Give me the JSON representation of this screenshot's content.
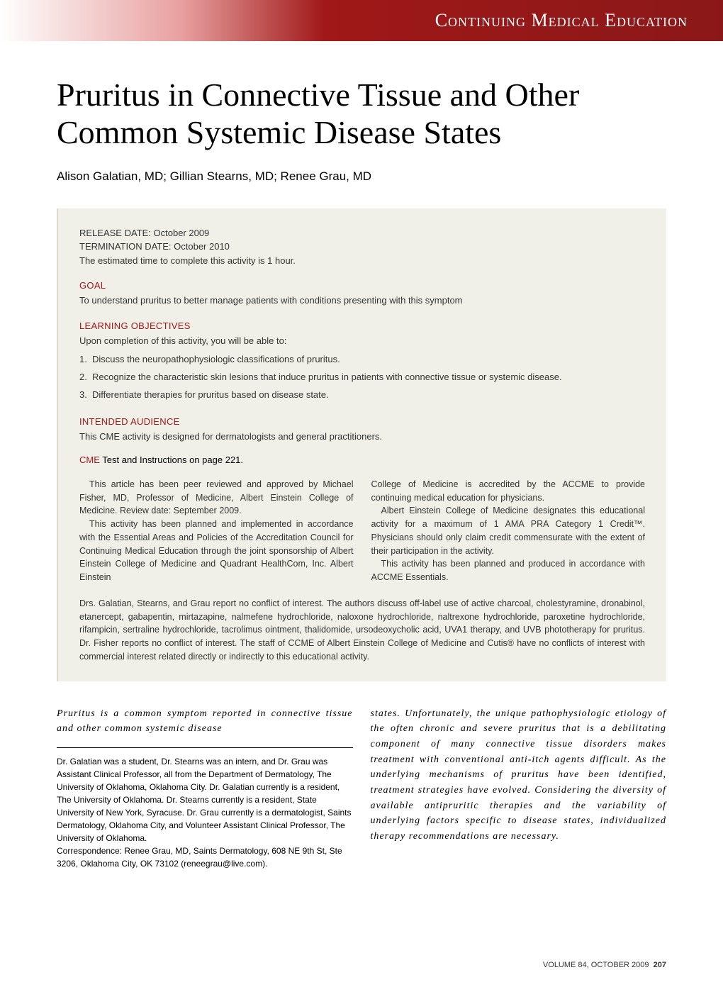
{
  "banner": {
    "text": "Continuing Medical Education",
    "gradient_start": "#ffffff",
    "gradient_mid1": "#e8a0a0",
    "gradient_mid2": "#a01818",
    "gradient_end": "#8b1818",
    "text_color": "#ffffff",
    "fontsize": 26
  },
  "title": {
    "text": "Pruritus in Connective Tissue and Other Common Systemic Disease States",
    "fontsize": 46,
    "color": "#000000",
    "font_family": "Georgia"
  },
  "authors": {
    "text": "Alison Galatian, MD; Gillian Stearns, MD; Renee Grau, MD",
    "fontsize": 17
  },
  "info_box": {
    "background_color": "#f0f0e8",
    "border_color": "#e0d8c8",
    "meta": {
      "release": "RELEASE DATE: October 2009",
      "termination": "TERMINATION DATE: October 2010",
      "time": "The estimated time to complete this activity is 1 hour."
    },
    "goal": {
      "heading": "GOAL",
      "text": "To understand pruritus to better manage patients with conditions presenting with this symptom"
    },
    "learning_objectives": {
      "heading": "LEARNING OBJECTIVES",
      "intro": "Upon completion of this activity, you will be able to:",
      "items": [
        "Discuss the neuropathophysiologic classifications of pruritus.",
        "Recognize the characteristic skin lesions that induce pruritus in patients with connective tissue or systemic disease.",
        "Differentiate therapies for pruritus based on disease state."
      ]
    },
    "intended_audience": {
      "heading": "INTENDED AUDIENCE",
      "text": "This CME activity is designed for dermatologists and general practitioners."
    },
    "cme_test": {
      "label": "CME",
      "text": " Test and Instructions on page 221."
    },
    "accreditation": {
      "left_p1": "This article has been peer reviewed and approved by Michael Fisher, MD, Professor of Medicine, Albert Einstein College of Medicine. Review date: September 2009.",
      "left_p2": "This activity has been planned and implemented in accordance with the Essential Areas and Policies of the Accreditation Council for Continuing Medical Education through the joint sponsorship of Albert Einstein College of Medicine and Quadrant HealthCom, Inc. Albert Einstein",
      "right_p1": "College of Medicine is accredited by the ACCME to provide continuing medical education for physicians.",
      "right_p2": "Albert Einstein College of Medicine designates this educational activity for a maximum of 1 AMA PRA Category 1 Credit™. Physicians should only claim credit commensurate with the extent of their participation in the activity.",
      "right_p3": "This activity has been planned and produced in accordance with ACCME Essentials."
    },
    "disclosure": "Drs. Galatian, Stearns, and Grau report no conflict of interest. The authors discuss off-label use of active charcoal, cholestyramine, dronabinol, etanercept, gabapentin, mirtazapine, nalmefene hydrochloride, naloxone hydrochloride, naltrexone hydrochloride, paroxetine hydrochloride, rifampicin, sertraline hydrochloride, tacrolimus ointment, thalidomide, ursodeoxycholic acid, UVA1 therapy, and UVB phototherapy for pruritus. Dr. Fisher reports no conflict of interest. The staff of CCME of Albert Einstein College of Medicine and Cutis® have no conflicts of interest with commercial interest related directly or indirectly to this educational activity.",
    "heading_color": "#a01818",
    "text_color": "#333333",
    "fontsize_heading": 13,
    "fontsize_text": 13
  },
  "abstract": {
    "left": "Pruritus is a common symptom reported in connective tissue and other common systemic disease",
    "right": "states. Unfortunately, the unique pathophysiologic etiology of the often chronic and severe pruritus that is a debilitating component of many connective tissue disorders makes treatment with conventional anti-itch agents difficult. As the underlying mechanisms of pruritus have been identified, treatment strategies have evolved. Considering the diversity of available antipruritic therapies and the variability of underlying factors specific to disease states, individualized therapy recommendations are necessary.",
    "fontsize": 14,
    "font_family": "Georgia",
    "font_style": "italic",
    "letter_spacing": "1px"
  },
  "affiliation": {
    "p1": "Dr. Galatian was a student, Dr. Stearns was an intern, and Dr. Grau was Assistant Clinical Professor, all from the Department of Dermatology, The University of Oklahoma, Oklahoma City. Dr. Galatian currently is a resident, The University of Oklahoma. Dr. Stearns currently is a resident, State University of New York, Syracuse. Dr. Grau currently is a dermatologist, Saints Dermatology, Oklahoma City, and Volunteer Assistant Clinical Professor, The University of Oklahoma.",
    "p2": "Correspondence: Renee Grau, MD, Saints Dermatology, 608 NE 9th St, Ste 3206, Oklahoma City, OK 73102 (reneegrau@live.com).",
    "fontsize": 12
  },
  "footer": {
    "volume": "VOLUME 84, OCTOBER 2009",
    "page": "207",
    "fontsize": 11
  }
}
